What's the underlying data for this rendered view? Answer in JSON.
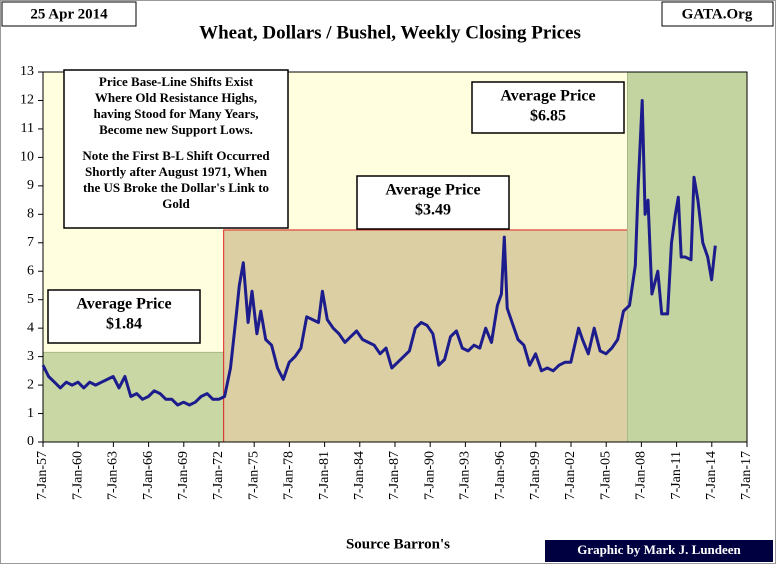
{
  "chart_data": {
    "type": "line",
    "title": "Wheat, Dollars / Bushel, Weekly Closing Prices",
    "date_label": "25 Apr 2014",
    "site": "GATA.Org",
    "source": "Source Barron's",
    "credit": "Graphic by Mark J. Lundeen",
    "xlim": [
      "1957-01-07",
      "2017-01-07"
    ],
    "ylim": [
      0,
      13
    ],
    "yticks": [
      0,
      1,
      2,
      3,
      4,
      5,
      6,
      7,
      8,
      9,
      10,
      11,
      12,
      13
    ],
    "xticks": [
      {
        "value": "1957-01-07",
        "label": "7-Jan-57"
      },
      {
        "value": "1960-01-07",
        "label": "7-Jan-60"
      },
      {
        "value": "1963-01-07",
        "label": "7-Jan-63"
      },
      {
        "value": "1966-01-07",
        "label": "7-Jan-66"
      },
      {
        "value": "1969-01-07",
        "label": "7-Jan-69"
      },
      {
        "value": "1972-01-07",
        "label": "7-Jan-72"
      },
      {
        "value": "1975-01-07",
        "label": "7-Jan-75"
      },
      {
        "value": "1978-01-07",
        "label": "7-Jan-78"
      },
      {
        "value": "1981-01-07",
        "label": "7-Jan-81"
      },
      {
        "value": "1984-01-07",
        "label": "7-Jan-84"
      },
      {
        "value": "1987-01-07",
        "label": "7-Jan-87"
      },
      {
        "value": "1990-01-07",
        "label": "7-Jan-90"
      },
      {
        "value": "1993-01-07",
        "label": "7-Jan-93"
      },
      {
        "value": "1996-01-07",
        "label": "7-Jan-96"
      },
      {
        "value": "1999-01-07",
        "label": "7-Jan-99"
      },
      {
        "value": "2002-01-07",
        "label": "7-Jan-02"
      },
      {
        "value": "2005-01-07",
        "label": "7-Jan-05"
      },
      {
        "value": "2008-01-07",
        "label": "7-Jan-08"
      },
      {
        "value": "2011-01-07",
        "label": "7-Jan-11"
      },
      {
        "value": "2014-01-07",
        "label": "7-Jan-14"
      },
      {
        "value": "2017-01-07",
        "label": "7-Jan-17"
      }
    ],
    "background": "#ffffe0",
    "zones": [
      {
        "start": "1957-01-07",
        "end": "1972-06-01",
        "top": 3.15,
        "color": "#c9d7a4",
        "border": "#a8b888"
      },
      {
        "start": "1972-06-01",
        "end": "2006-11-01",
        "top": 7.45,
        "color": "#dccfa4",
        "border": "#e02020"
      },
      {
        "start": "2006-11-01",
        "end": "2017-01-07",
        "top": 13,
        "color": "#c4d4a0",
        "border": "#a8b888"
      }
    ],
    "annotations": [
      {
        "lines": [
          "Average Price",
          "$1.84"
        ]
      },
      {
        "lines": [
          "Average Price",
          "$3.49"
        ]
      },
      {
        "lines": [
          "Average Price",
          "$6.85"
        ]
      }
    ],
    "notes": [
      [
        "Price Base-Line Shifts Exist",
        "Where Old Resistance Highs,",
        "having Stood for Many Years,",
        "Become new Support Lows."
      ],
      [
        "Note the First B-L Shift Occurred",
        "Shortly after August 1971, When",
        "the US Broke the Dollar's Link to",
        "Gold"
      ]
    ],
    "series": [
      {
        "name": "Wheat",
        "color": "#1c1c8c",
        "x": [
          "1957-01-07",
          "1957-07-01",
          "1958-01-01",
          "1958-07-01",
          "1959-01-01",
          "1959-07-01",
          "1960-01-01",
          "1960-07-01",
          "1961-01-01",
          "1961-07-01",
          "1962-01-01",
          "1962-07-01",
          "1963-01-01",
          "1963-07-01",
          "1964-01-01",
          "1964-07-01",
          "1965-01-01",
          "1965-07-01",
          "1966-01-01",
          "1966-07-01",
          "1967-01-01",
          "1967-07-01",
          "1968-01-01",
          "1968-07-01",
          "1969-01-01",
          "1969-07-01",
          "1970-01-01",
          "1970-07-01",
          "1971-01-01",
          "1971-07-01",
          "1972-01-01",
          "1972-07-01",
          "1973-01-01",
          "1973-07-01",
          "1973-10-01",
          "1974-02-01",
          "1974-07-01",
          "1974-11-01",
          "1975-04-01",
          "1975-08-01",
          "1976-01-01",
          "1976-07-01",
          "1977-01-01",
          "1977-07-01",
          "1978-01-01",
          "1978-07-01",
          "1979-01-01",
          "1979-07-01",
          "1980-01-01",
          "1980-07-01",
          "1980-11-01",
          "1981-04-01",
          "1981-10-01",
          "1982-04-01",
          "1982-10-01",
          "1983-04-01",
          "1983-10-01",
          "1984-04-01",
          "1984-10-01",
          "1985-04-01",
          "1985-10-01",
          "1986-04-01",
          "1986-10-01",
          "1987-04-01",
          "1987-10-01",
          "1988-04-01",
          "1988-10-01",
          "1989-04-01",
          "1989-10-01",
          "1990-04-01",
          "1990-10-01",
          "1991-04-01",
          "1991-10-01",
          "1992-04-01",
          "1992-10-01",
          "1993-04-01",
          "1993-10-01",
          "1994-04-01",
          "1994-10-01",
          "1995-04-01",
          "1995-10-01",
          "1996-02-01",
          "1996-05-01",
          "1996-08-01",
          "1997-01-01",
          "1997-07-01",
          "1998-01-01",
          "1998-07-01",
          "1999-01-01",
          "1999-07-01",
          "2000-01-01",
          "2000-07-01",
          "2001-01-01",
          "2001-07-01",
          "2002-01-01",
          "2002-09-01",
          "2003-01-01",
          "2003-07-01",
          "2004-01-01",
          "2004-07-01",
          "2005-01-01",
          "2005-07-01",
          "2006-01-01",
          "2006-07-01",
          "2007-01-01",
          "2007-07-01",
          "2007-10-01",
          "2008-02-01",
          "2008-05-01",
          "2008-08-01",
          "2008-12-01",
          "2009-06-01",
          "2009-10-01",
          "2010-04-01",
          "2010-08-01",
          "2010-12-01",
          "2011-03-01",
          "2011-06-01",
          "2011-10-01",
          "2012-04-01",
          "2012-07-01",
          "2012-11-01",
          "2013-04-01",
          "2013-09-01",
          "2014-01-01",
          "2014-04-25"
        ],
        "values": [
          2.7,
          2.3,
          2.1,
          1.9,
          2.1,
          2.0,
          2.1,
          1.9,
          2.1,
          2.0,
          2.1,
          2.2,
          2.3,
          1.9,
          2.3,
          1.6,
          1.7,
          1.5,
          1.6,
          1.8,
          1.7,
          1.5,
          1.5,
          1.3,
          1.4,
          1.3,
          1.4,
          1.6,
          1.7,
          1.5,
          1.5,
          1.6,
          2.6,
          4.5,
          5.5,
          6.3,
          4.2,
          5.3,
          3.8,
          4.6,
          3.6,
          3.4,
          2.6,
          2.2,
          2.8,
          3.0,
          3.3,
          4.4,
          4.3,
          4.2,
          5.3,
          4.3,
          4.0,
          3.8,
          3.5,
          3.7,
          3.9,
          3.6,
          3.5,
          3.4,
          3.1,
          3.3,
          2.6,
          2.8,
          3.0,
          3.2,
          4.0,
          4.2,
          4.1,
          3.8,
          2.7,
          2.9,
          3.7,
          3.9,
          3.3,
          3.2,
          3.4,
          3.3,
          4.0,
          3.5,
          4.8,
          5.2,
          7.2,
          4.7,
          4.2,
          3.6,
          3.4,
          2.7,
          3.1,
          2.5,
          2.6,
          2.5,
          2.7,
          2.8,
          2.8,
          4.0,
          3.6,
          3.1,
          4.0,
          3.2,
          3.1,
          3.3,
          3.6,
          4.6,
          4.8,
          6.2,
          9.0,
          12.0,
          8.0,
          8.5,
          5.2,
          6.0,
          4.5,
          4.5,
          7.0,
          8.0,
          8.6,
          6.5,
          6.5,
          6.4,
          9.3,
          8.5,
          7.0,
          6.5,
          5.7,
          6.9
        ]
      }
    ]
  }
}
